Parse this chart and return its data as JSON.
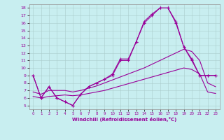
{
  "xlabel": "Windchill (Refroidissement éolien,°C)",
  "bg_color": "#c8eef0",
  "line_color": "#990099",
  "grid_color": "#aacccc",
  "xlim": [
    -0.5,
    23.5
  ],
  "ylim": [
    4.5,
    18.5
  ],
  "xticks": [
    0,
    1,
    2,
    3,
    4,
    5,
    6,
    7,
    8,
    9,
    10,
    11,
    12,
    13,
    14,
    15,
    16,
    17,
    18,
    19,
    20,
    21,
    22,
    23
  ],
  "yticks": [
    5,
    6,
    7,
    8,
    9,
    10,
    11,
    12,
    13,
    14,
    15,
    16,
    17,
    18
  ],
  "line1_x": [
    0,
    1,
    2,
    3,
    4,
    5,
    6,
    7,
    8,
    9,
    10,
    11,
    12,
    13,
    14,
    15,
    16,
    17,
    18,
    19,
    20,
    21,
    22,
    23
  ],
  "line1_y": [
    9,
    6,
    7.5,
    6,
    5.5,
    5,
    6.5,
    7.5,
    8,
    8.5,
    9.2,
    11.2,
    11.2,
    13.5,
    16.2,
    17.2,
    18,
    18,
    16.2,
    12.8,
    11.2,
    9,
    9,
    9
  ],
  "line2_x": [
    0,
    1,
    2,
    3,
    4,
    5,
    6,
    7,
    8,
    9,
    10,
    11,
    12,
    13,
    14,
    15,
    16,
    17,
    18,
    19,
    20,
    21,
    22,
    23
  ],
  "line2_y": [
    9,
    6,
    7.5,
    6,
    5.5,
    5,
    6.5,
    7.5,
    8,
    8.5,
    9,
    11,
    11,
    13.5,
    16,
    17,
    18,
    18,
    16,
    12.8,
    11,
    9,
    9,
    9
  ],
  "line3_x": [
    0,
    1,
    2,
    3,
    4,
    5,
    6,
    7,
    8,
    9,
    10,
    11,
    12,
    13,
    14,
    15,
    16,
    17,
    18,
    19,
    20,
    21,
    22,
    23
  ],
  "line3_y": [
    6.8,
    6.5,
    7.0,
    7.0,
    7.0,
    6.8,
    7.0,
    7.3,
    7.6,
    8.0,
    8.4,
    8.8,
    9.2,
    9.6,
    10.0,
    10.5,
    11.0,
    11.5,
    12.0,
    12.5,
    12.2,
    11.0,
    8.0,
    7.5
  ],
  "line4_x": [
    0,
    1,
    2,
    3,
    4,
    5,
    6,
    7,
    8,
    9,
    10,
    11,
    12,
    13,
    14,
    15,
    16,
    17,
    18,
    19,
    20,
    21,
    22,
    23
  ],
  "line4_y": [
    6.2,
    6.0,
    6.2,
    6.3,
    6.4,
    6.3,
    6.4,
    6.6,
    6.8,
    7.0,
    7.3,
    7.6,
    7.9,
    8.2,
    8.5,
    8.8,
    9.1,
    9.4,
    9.7,
    10.0,
    9.8,
    9.2,
    6.8,
    6.6
  ]
}
